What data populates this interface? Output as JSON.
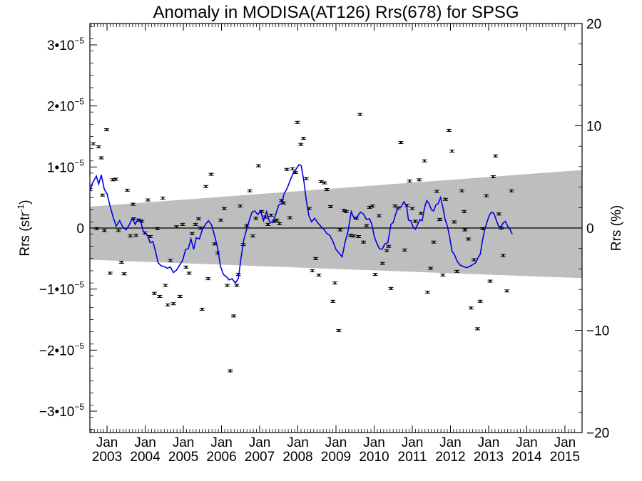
{
  "chart_data": {
    "type": "scatter",
    "title": "Anomaly in MODISA(AT126) Rrs(678) for SPSG",
    "ylabel_left": {
      "base": "Rrs (str",
      "exp": "-1",
      "close": ")"
    },
    "ylabel_right": "Rrs (%)",
    "ylim": [
      -3.35e-05,
      3.35e-05
    ],
    "ylim_right": [
      -20,
      20
    ],
    "yticks_left": [
      {
        "value": -3e-05,
        "mant": "−3•10",
        "exp": "−5"
      },
      {
        "value": -2e-05,
        "mant": "−2•10",
        "exp": "−5"
      },
      {
        "value": -1e-05,
        "mant": "−1•10",
        "exp": "−5"
      },
      {
        "value": 0,
        "mant": "0",
        "exp": ""
      },
      {
        "value": 1e-05,
        "mant": "1•10",
        "exp": "−5"
      },
      {
        "value": 2e-05,
        "mant": "2•10",
        "exp": "−5"
      },
      {
        "value": 3e-05,
        "mant": "3•10",
        "exp": "−5"
      }
    ],
    "yticks_right": [
      "20",
      "10",
      "0",
      "−10",
      "−20"
    ],
    "xlim": [
      2002.55,
      2015.45
    ],
    "xticks": [
      {
        "t": 2003.0,
        "month": "Jan",
        "year": "2003"
      },
      {
        "t": 2004.0,
        "month": "Jan",
        "year": "2004"
      },
      {
        "t": 2005.0,
        "month": "Jan",
        "year": "2005"
      },
      {
        "t": 2006.0,
        "month": "Jan",
        "year": "2006"
      },
      {
        "t": 2007.0,
        "month": "Jan",
        "year": "2007"
      },
      {
        "t": 2008.0,
        "month": "Jan",
        "year": "2008"
      },
      {
        "t": 2009.0,
        "month": "Jan",
        "year": "2009"
      },
      {
        "t": 2010.0,
        "month": "Jan",
        "year": "2010"
      },
      {
        "t": 2011.0,
        "month": "Jan",
        "year": "2011"
      },
      {
        "t": 2012.0,
        "month": "Jan",
        "year": "2012"
      },
      {
        "t": 2013.0,
        "month": "Jan",
        "year": "2013"
      },
      {
        "t": 2014.0,
        "month": "Jan",
        "year": "2014"
      },
      {
        "t": 2015.0,
        "month": "Jan",
        "year": "2015"
      }
    ],
    "band": {
      "upper": [
        [
          2002.55,
          3.5e-06
        ],
        [
          2015.45,
          9.5e-06
        ]
      ],
      "lower": [
        [
          2002.55,
          -5.2e-06
        ],
        [
          2015.45,
          -8.2e-06
        ]
      ]
    },
    "colors": {
      "band": "#bebebe",
      "line": "#0000e6",
      "points": "#000000"
    },
    "points": [
      [
        2002.55,
        6.3e-06
      ],
      [
        2002.64,
        1.38e-05
      ],
      [
        2002.73,
        -1e-07
      ],
      [
        2002.78,
        1.33e-05
      ],
      [
        2002.85,
        1.15e-05
      ],
      [
        2002.88,
        5.4e-06
      ],
      [
        2002.93,
        -4e-07
      ],
      [
        2002.99,
        1.61e-05
      ],
      [
        2003.08,
        -7.4e-06
      ],
      [
        2003.15,
        7.9e-06
      ],
      [
        2003.23,
        8e-06
      ],
      [
        2003.3,
        -4e-07
      ],
      [
        2003.38,
        -5.6e-06
      ],
      [
        2003.45,
        -7.5e-06
      ],
      [
        2003.53,
        6.2e-06
      ],
      [
        2003.61,
        -1.3e-06
      ],
      [
        2003.68,
        3.9e-06
      ],
      [
        2003.7,
        1.5e-06
      ],
      [
        2003.76,
        -1.2e-06
      ],
      [
        2003.84,
        1.3e-06
      ],
      [
        2003.91,
        1.1e-06
      ],
      [
        2003.99,
        -8e-07
      ],
      [
        2004.07,
        4.6e-06
      ],
      [
        2004.13,
        -1.4e-06
      ],
      [
        2004.24,
        -1.07e-05
      ],
      [
        2004.32,
        -1e-07
      ],
      [
        2004.38,
        -1.12e-05
      ],
      [
        2004.46,
        4.9e-06
      ],
      [
        2004.53,
        -9.4e-06
      ],
      [
        2004.59,
        -1.26e-05
      ],
      [
        2004.66,
        -5.3e-06
      ],
      [
        2004.74,
        -1.24e-05
      ],
      [
        2004.82,
        2e-07
      ],
      [
        2004.91,
        -1.12e-05
      ],
      [
        2004.98,
        6e-07
      ],
      [
        2005.07,
        -6.4e-06
      ],
      [
        2005.15,
        -7.4e-06
      ],
      [
        2005.23,
        -9e-07
      ],
      [
        2005.32,
        6e-07
      ],
      [
        2005.4,
        1.5e-06
      ],
      [
        2005.45,
        0.0
      ],
      [
        2005.49,
        -1.33e-05
      ],
      [
        2005.59,
        6.8e-06
      ],
      [
        2005.65,
        -8.3e-06
      ],
      [
        2005.73,
        8.8e-06
      ],
      [
        2005.82,
        -2.6e-06
      ],
      [
        2005.9,
        -4.1e-06
      ],
      [
        2005.98,
        1.3e-06
      ],
      [
        2006.07,
        3.2e-06
      ],
      [
        2006.15,
        -9.4e-06
      ],
      [
        2006.23,
        -2.34e-05
      ],
      [
        2006.32,
        -1.44e-05
      ],
      [
        2006.4,
        -9.4e-06
      ],
      [
        2006.44,
        -7.6e-06
      ],
      [
        2006.49,
        3.6e-06
      ],
      [
        2006.57,
        -2.7e-06
      ],
      [
        2006.66,
        4e-07
      ],
      [
        2006.74,
        6.1e-06
      ],
      [
        2006.82,
        -1.3e-06
      ],
      [
        2006.9,
        1.6e-06
      ],
      [
        2006.97,
        1.02e-05
      ],
      [
        2007.05,
        2.7e-06
      ],
      [
        2007.15,
        1.8e-06
      ],
      [
        2007.22,
        6e-07
      ],
      [
        2007.3,
        2.1e-06
      ],
      [
        2007.38,
        1.1e-06
      ],
      [
        2007.45,
        1.3e-06
      ],
      [
        2007.52,
        7e-07
      ],
      [
        2007.57,
        4.5e-06
      ],
      [
        2007.63,
        4.1e-06
      ],
      [
        2007.71,
        9.6e-06
      ],
      [
        2007.79,
        1.7e-06
      ],
      [
        2007.86,
        9.7e-06
      ],
      [
        2007.94,
        9.1e-06
      ],
      [
        2007.99,
        1.73e-05
      ],
      [
        2008.08,
        1.37e-05
      ],
      [
        2008.15,
        1.47e-05
      ],
      [
        2008.22,
        8.1e-06
      ],
      [
        2008.3,
        3.2e-06
      ],
      [
        2008.38,
        -7e-06
      ],
      [
        2008.47,
        -5e-06
      ],
      [
        2008.55,
        -7.7e-06
      ],
      [
        2008.61,
        7.6e-06
      ],
      [
        2008.7,
        7.4e-06
      ],
      [
        2008.76,
        6.3e-06
      ],
      [
        2008.86,
        3.5e-06
      ],
      [
        2008.92,
        -1.2e-05
      ],
      [
        2008.97,
        -9e-06
      ],
      [
        2009.07,
        -1.68e-05
      ],
      [
        2009.11,
        -3e-07
      ],
      [
        2009.21,
        2.9e-06
      ],
      [
        2009.27,
        2.7e-06
      ],
      [
        2009.38,
        -1.2e-06
      ],
      [
        2009.46,
        -1.3e-06
      ],
      [
        2009.54,
        1.6e-06
      ],
      [
        2009.59,
        -1.4e-06
      ],
      [
        2009.63,
        1.86e-05
      ],
      [
        2009.72,
        -2.3e-06
      ],
      [
        2009.8,
        4e-07
      ],
      [
        2009.88,
        3.4e-06
      ],
      [
        2009.96,
        3.6e-06
      ],
      [
        2010.03,
        -7.6e-06
      ],
      [
        2010.13,
        2e-06
      ],
      [
        2010.22,
        -5.8e-06
      ],
      [
        2010.33,
        -3.7e-06
      ],
      [
        2010.38,
        -3e-06
      ],
      [
        2010.44,
        -9.9e-06
      ],
      [
        2010.55,
        3.6e-06
      ],
      [
        2010.63,
        3.3e-06
      ],
      [
        2010.7,
        1.4e-05
      ],
      [
        2010.8,
        -3.6e-06
      ],
      [
        2010.86,
        3.7e-06
      ],
      [
        2010.93,
        7.7e-06
      ],
      [
        2011.0,
        3.2e-06
      ],
      [
        2011.08,
        1.1e-06
      ],
      [
        2011.18,
        7.9e-06
      ],
      [
        2011.23,
        2.4e-06
      ],
      [
        2011.32,
        1.1e-05
      ],
      [
        2011.4,
        -1.05e-05
      ],
      [
        2011.48,
        -6.6e-06
      ],
      [
        2011.56,
        -2.3e-06
      ],
      [
        2011.64,
        6e-06
      ],
      [
        2011.72,
        1.4e-06
      ],
      [
        2011.8,
        -7.7e-06
      ],
      [
        2011.87,
        4.7e-06
      ],
      [
        2011.96,
        1.6e-05
      ],
      [
        2012.04,
        1.26e-05
      ],
      [
        2012.1,
        1e-06
      ],
      [
        2012.17,
        -7.1e-06
      ],
      [
        2012.3,
        6.1e-06
      ],
      [
        2012.36,
        2.7e-06
      ],
      [
        2012.38,
        -3e-07
      ],
      [
        2012.47,
        -1.8e-06
      ],
      [
        2012.54,
        -1.31e-05
      ],
      [
        2012.62,
        -5.2e-06
      ],
      [
        2012.71,
        -1.65e-05
      ],
      [
        2012.78,
        -1.2e-05
      ],
      [
        2012.85,
        -1e-07
      ],
      [
        2012.94,
        5.3e-06
      ],
      [
        2013.04,
        -8.7e-06
      ],
      [
        2013.12,
        8.4e-06
      ],
      [
        2013.18,
        1.18e-05
      ],
      [
        2013.27,
        2.3e-06
      ],
      [
        2013.33,
        0.0
      ],
      [
        2013.38,
        -4.5e-06
      ],
      [
        2013.48,
        -1.03e-05
      ],
      [
        2013.6,
        6.1e-06
      ]
    ],
    "line": [
      [
        2002.55,
        6.1e-06
      ],
      [
        2002.62,
        7.4e-06
      ],
      [
        2002.72,
        8.5e-06
      ],
      [
        2002.78,
        7.2e-06
      ],
      [
        2002.85,
        8.7e-06
      ],
      [
        2002.93,
        6.3e-06
      ],
      [
        2003.0,
        5.6e-06
      ],
      [
        2003.08,
        3.6e-06
      ],
      [
        2003.16,
        1.8e-06
      ],
      [
        2003.24,
        3e-07
      ],
      [
        2003.33,
        1.2e-06
      ],
      [
        2003.42,
        1e-07
      ],
      [
        2003.5,
        -3e-07
      ],
      [
        2003.58,
        5e-07
      ],
      [
        2003.66,
        1.6e-06
      ],
      [
        2003.74,
        6e-07
      ],
      [
        2003.81,
        1.5e-06
      ],
      [
        2003.88,
        1.2e-06
      ],
      [
        2003.95,
        -6e-07
      ],
      [
        2004.02,
        -9e-07
      ],
      [
        2004.08,
        -1.5e-06
      ],
      [
        2004.13,
        -2.4e-06
      ],
      [
        2004.2,
        -2.2e-06
      ],
      [
        2004.27,
        -3.8e-06
      ],
      [
        2004.34,
        -5.7e-06
      ],
      [
        2004.42,
        -6.2e-06
      ],
      [
        2004.5,
        -6.3e-06
      ],
      [
        2004.58,
        -6.6e-06
      ],
      [
        2004.66,
        -6.4e-06
      ],
      [
        2004.74,
        -7.3e-06
      ],
      [
        2004.82,
        -6.9e-06
      ],
      [
        2004.9,
        -6.1e-06
      ],
      [
        2004.98,
        -5.3e-06
      ],
      [
        2005.06,
        -3.5e-06
      ],
      [
        2005.13,
        -3.4e-06
      ],
      [
        2005.2,
        -1.8e-06
      ],
      [
        2005.27,
        -3.5e-06
      ],
      [
        2005.34,
        -1.6e-06
      ],
      [
        2005.42,
        -1.8e-06
      ],
      [
        2005.5,
        -2e-07
      ],
      [
        2005.58,
        6e-07
      ],
      [
        2005.66,
        1.2e-06
      ],
      [
        2005.74,
        5e-07
      ],
      [
        2005.82,
        -1.3e-06
      ],
      [
        2005.9,
        -3.3e-06
      ],
      [
        2005.97,
        -6.2e-06
      ],
      [
        2006.05,
        -7.6e-06
      ],
      [
        2006.13,
        -8e-06
      ],
      [
        2006.2,
        -8.5e-06
      ],
      [
        2006.28,
        -8.3e-06
      ],
      [
        2006.36,
        -9e-06
      ],
      [
        2006.44,
        -8.3e-06
      ],
      [
        2006.51,
        -5e-06
      ],
      [
        2006.58,
        -2e-06
      ],
      [
        2006.66,
        -2e-07
      ],
      [
        2006.73,
        1.3e-06
      ],
      [
        2006.8,
        2.6e-06
      ],
      [
        2006.87,
        2.8e-06
      ],
      [
        2006.95,
        2.2e-06
      ],
      [
        2007.02,
        2.8e-06
      ],
      [
        2007.1,
        1.2e-06
      ],
      [
        2007.18,
        2.7e-06
      ],
      [
        2007.26,
        1e-06
      ],
      [
        2007.34,
        9e-07
      ],
      [
        2007.42,
        2.2e-06
      ],
      [
        2007.5,
        3.8e-06
      ],
      [
        2007.58,
        4e-06
      ],
      [
        2007.64,
        5.6e-06
      ],
      [
        2007.72,
        6.5e-06
      ],
      [
        2007.8,
        7.8e-06
      ],
      [
        2007.88,
        9e-06
      ],
      [
        2007.96,
        9.7e-06
      ],
      [
        2008.03,
        1.04e-05
      ],
      [
        2008.09,
        1.02e-05
      ],
      [
        2008.16,
        7.6e-06
      ],
      [
        2008.22,
        4.6e-06
      ],
      [
        2008.29,
        2e-06
      ],
      [
        2008.36,
        1e-06
      ],
      [
        2008.44,
        1.6e-06
      ],
      [
        2008.52,
        9e-07
      ],
      [
        2008.6,
        3e-07
      ],
      [
        2008.68,
        -2e-07
      ],
      [
        2008.76,
        -9e-07
      ],
      [
        2008.84,
        -1.2e-06
      ],
      [
        2008.92,
        -2.2e-06
      ],
      [
        2009.0,
        -3.5e-06
      ],
      [
        2009.08,
        -4.1e-06
      ],
      [
        2009.16,
        -4.7e-06
      ],
      [
        2009.24,
        -2.3e-06
      ],
      [
        2009.32,
        -4e-07
      ],
      [
        2009.4,
        2.7e-06
      ],
      [
        2009.48,
        1.5e-06
      ],
      [
        2009.56,
        1.9e-06
      ],
      [
        2009.64,
        2.6e-06
      ],
      [
        2009.72,
        2.3e-06
      ],
      [
        2009.8,
        1.4e-06
      ],
      [
        2009.88,
        1.5e-06
      ],
      [
        2009.94,
        6e-07
      ],
      [
        2010.0,
        -1.3e-06
      ],
      [
        2010.07,
        -2.5e-06
      ],
      [
        2010.14,
        -3.4e-06
      ],
      [
        2010.21,
        -3.5e-06
      ],
      [
        2010.28,
        -2.6e-06
      ],
      [
        2010.36,
        -2.4e-06
      ],
      [
        2010.44,
        6e-07
      ],
      [
        2010.5,
        9e-07
      ],
      [
        2010.56,
        2.2e-06
      ],
      [
        2010.63,
        3.4e-06
      ],
      [
        2010.7,
        3.4e-06
      ],
      [
        2010.78,
        4.3e-06
      ],
      [
        2010.85,
        3.6e-06
      ],
      [
        2010.9,
        1.3e-06
      ],
      [
        2010.96,
        1.2e-06
      ],
      [
        2011.02,
        2e-07
      ],
      [
        2011.08,
        -2e-07
      ],
      [
        2011.14,
        6e-07
      ],
      [
        2011.2,
        1.4e-06
      ],
      [
        2011.26,
        1.2e-06
      ],
      [
        2011.32,
        3.3e-06
      ],
      [
        2011.38,
        4.5e-06
      ],
      [
        2011.44,
        4e-06
      ],
      [
        2011.5,
        3e-06
      ],
      [
        2011.56,
        2.8e-06
      ],
      [
        2011.62,
        3.8e-06
      ],
      [
        2011.68,
        4e-06
      ],
      [
        2011.74,
        5e-06
      ],
      [
        2011.8,
        3.4e-06
      ],
      [
        2011.86,
        1.4e-06
      ],
      [
        2011.92,
        3e-07
      ],
      [
        2011.98,
        -1.5e-06
      ],
      [
        2012.04,
        -3.8e-06
      ],
      [
        2012.1,
        -4.3e-06
      ],
      [
        2012.18,
        -5.5e-06
      ],
      [
        2012.26,
        -6.1e-06
      ],
      [
        2012.34,
        -6.3e-06
      ],
      [
        2012.42,
        -6.5e-06
      ],
      [
        2012.5,
        -6.3e-06
      ],
      [
        2012.58,
        -6e-06
      ],
      [
        2012.66,
        -5.7e-06
      ],
      [
        2012.72,
        -4.9e-06
      ],
      [
        2012.78,
        -4.3e-06
      ],
      [
        2012.84,
        -2e-06
      ],
      [
        2012.9,
        -2e-07
      ],
      [
        2012.96,
        1e-06
      ],
      [
        2013.02,
        2.1e-06
      ],
      [
        2013.08,
        2.6e-06
      ],
      [
        2013.14,
        2.4e-06
      ],
      [
        2013.2,
        1.3e-06
      ],
      [
        2013.26,
        3e-07
      ],
      [
        2013.32,
        2e-07
      ],
      [
        2013.38,
        8e-07
      ],
      [
        2013.44,
        1.1e-06
      ],
      [
        2013.5,
        3e-07
      ],
      [
        2013.56,
        -2e-07
      ],
      [
        2013.62,
        -1e-06
      ]
    ]
  }
}
